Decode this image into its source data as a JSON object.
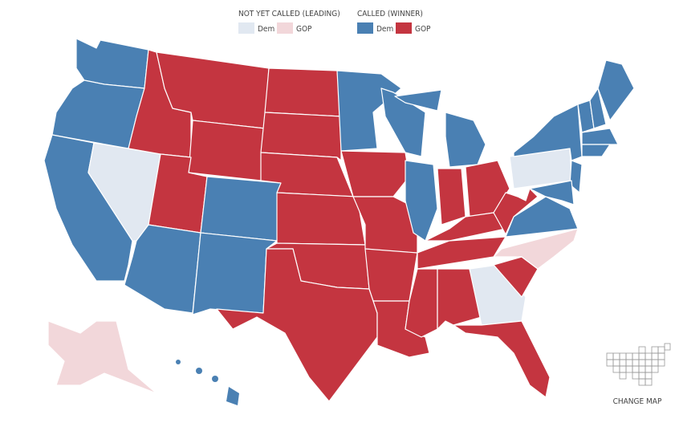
{
  "legend": {
    "groups": [
      {
        "title": "NOT YET CALLED (LEADING)",
        "items": [
          {
            "label": "Dem",
            "color": "#e1e8f1"
          },
          {
            "label": "GOP",
            "color": "#f2d7da"
          }
        ]
      },
      {
        "title": "CALLED (WINNER)",
        "items": [
          {
            "label": "Dem",
            "color": "#4a80b3"
          },
          {
            "label": "GOP",
            "color": "#c43540"
          }
        ]
      }
    ]
  },
  "button": {
    "label": "CHANGE MAP"
  }
}
